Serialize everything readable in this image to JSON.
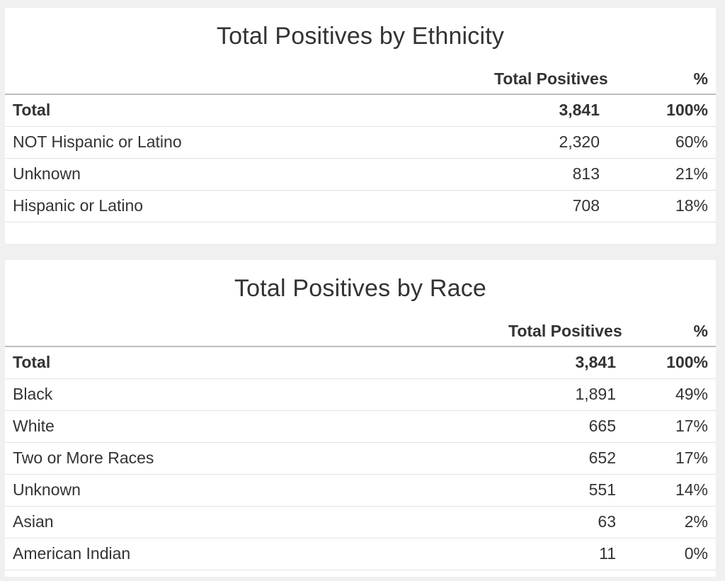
{
  "ethnicity": {
    "title": "Total Positives by Ethnicity",
    "columns": [
      "",
      "Total Positives",
      "%"
    ],
    "rows": [
      {
        "label": "Total",
        "count": "3,841",
        "pct": "100%"
      },
      {
        "label": "NOT Hispanic or Latino",
        "count": "2,320",
        "pct": "60%"
      },
      {
        "label": "Unknown",
        "count": "813",
        "pct": "21%"
      },
      {
        "label": "Hispanic or Latino",
        "count": "708",
        "pct": "18%"
      }
    ]
  },
  "race": {
    "title": "Total Positives by Race",
    "columns": [
      "",
      "Total Positives",
      "%"
    ],
    "rows": [
      {
        "label": "Total",
        "count": "3,841",
        "pct": "100%"
      },
      {
        "label": "Black",
        "count": "1,891",
        "pct": "49%"
      },
      {
        "label": "White",
        "count": "665",
        "pct": "17%"
      },
      {
        "label": "Two or More Races",
        "count": "652",
        "pct": "17%"
      },
      {
        "label": "Unknown",
        "count": "551",
        "pct": "14%"
      },
      {
        "label": "Asian",
        "count": "63",
        "pct": "2%"
      },
      {
        "label": "American Indian",
        "count": "11",
        "pct": "0%"
      }
    ]
  }
}
